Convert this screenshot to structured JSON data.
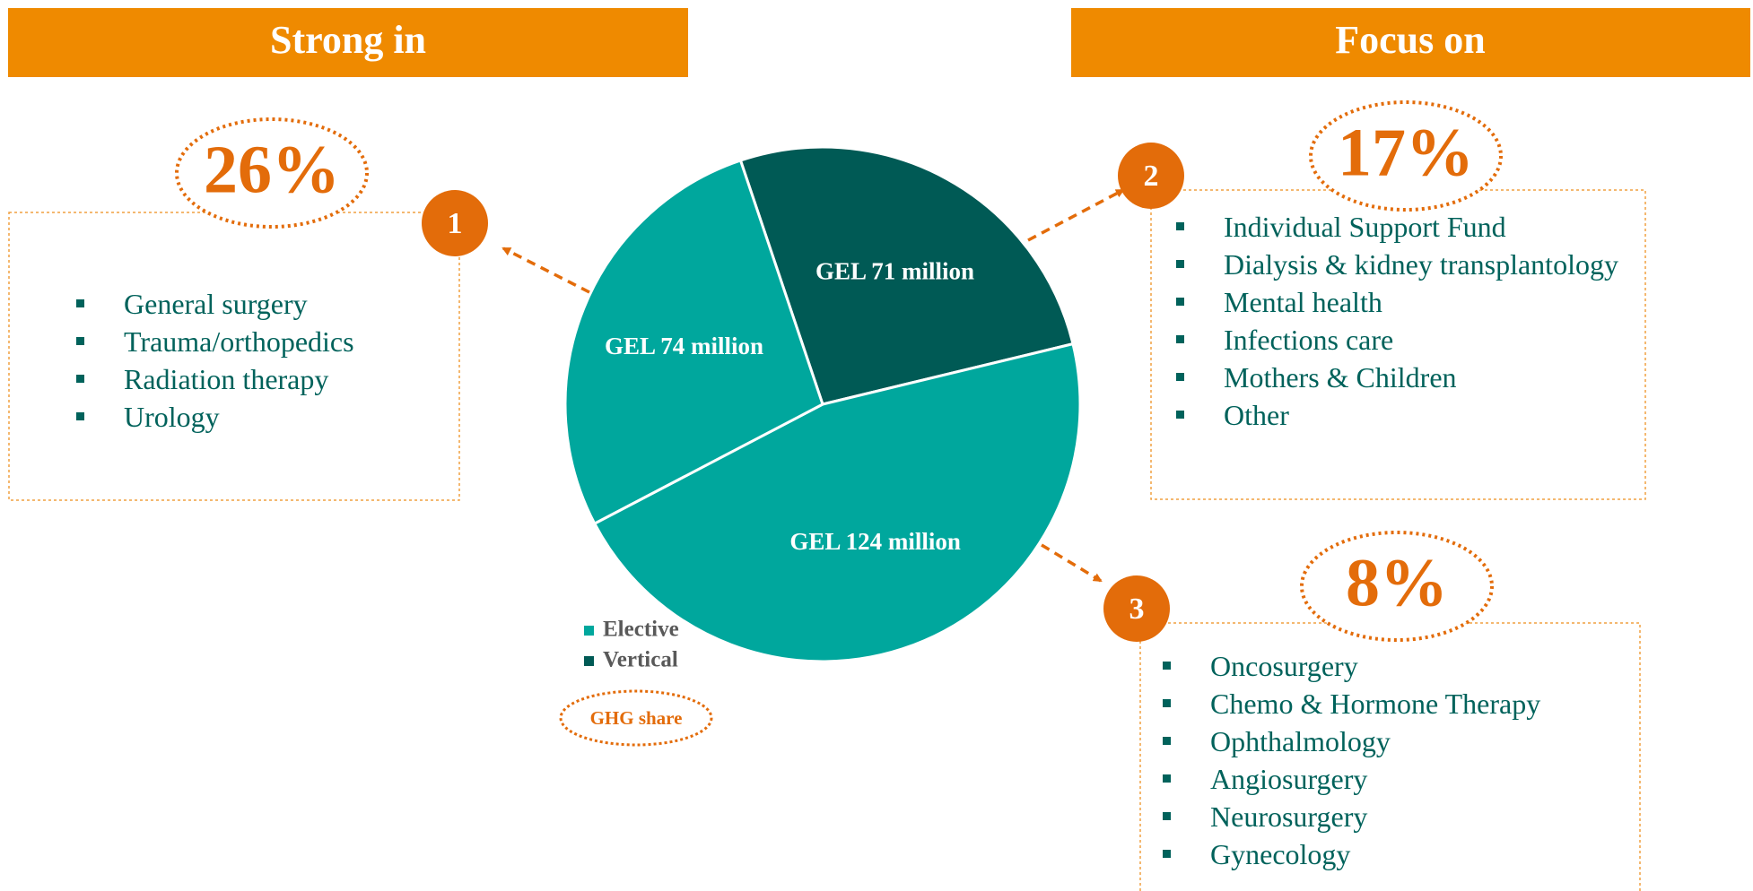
{
  "headers": {
    "left": "Strong in",
    "right": "Focus on"
  },
  "panels": [
    {
      "number": "1",
      "share": "26%",
      "items": [
        "General surgery",
        "Trauma/orthopedics",
        "Radiation therapy",
        "Urology"
      ]
    },
    {
      "number": "2",
      "share": "17%",
      "items": [
        "Individual Support Fund",
        "Dialysis & kidney transplantology",
        "Mental health",
        "Infections care",
        "Mothers & Children",
        "Other"
      ]
    },
    {
      "number": "3",
      "share": "8%",
      "items": [
        "Oncosurgery",
        "Chemo & Hormone Therapy",
        "Ophthalmology",
        "Angiosurgery",
        "Neurosurgery",
        "Gynecology"
      ]
    }
  ],
  "chart_data": {
    "type": "pie",
    "values": [
      71,
      124,
      74
    ],
    "value_labels": [
      "GEL 71 million",
      "GEL 124 million",
      "GEL 74 million"
    ],
    "colors": [
      "#005a55",
      "#00a79d",
      "#00a79d"
    ],
    "legend": [
      {
        "name": "Elective",
        "color": "#00a79d"
      },
      {
        "name": "Vertical",
        "color": "#005a55"
      }
    ],
    "annotation": "GHG share"
  }
}
